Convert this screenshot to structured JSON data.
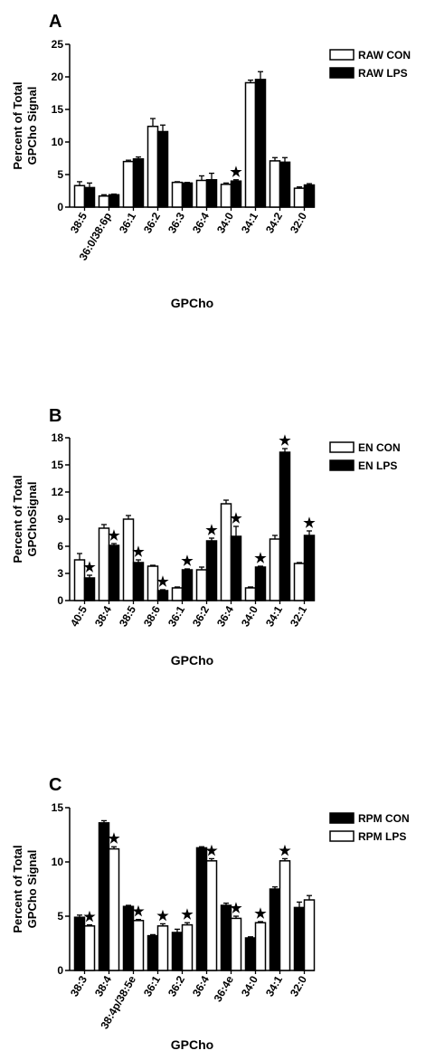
{
  "chart_data": [
    {
      "panel_letter": "A",
      "type": "bar",
      "ylabel": [
        "Percent of Total",
        "GPCho Signal"
      ],
      "xlabel": "GPCho",
      "ylim": [
        0,
        25
      ],
      "yticks": [
        0,
        5,
        10,
        15,
        20,
        25
      ],
      "categories": [
        "38:5",
        "36:0/38:6p",
        "36:1",
        "36:2",
        "36:3",
        "36:4",
        "34:0",
        "34:1",
        "34:2",
        "32:0"
      ],
      "series": [
        {
          "name": "RAW CON",
          "fill": "#ffffff",
          "values": [
            3.3,
            1.7,
            7.0,
            12.4,
            3.8,
            4.1,
            3.5,
            19.1,
            7.1,
            2.9
          ],
          "errors": [
            0.6,
            0.2,
            0.2,
            1.2,
            0.1,
            0.7,
            0.2,
            0.4,
            0.5,
            0.2
          ]
        },
        {
          "name": "RAW LPS",
          "fill": "#000000",
          "values": [
            3.0,
            1.9,
            7.4,
            11.6,
            3.7,
            4.2,
            4.0,
            19.6,
            6.9,
            3.4
          ],
          "errors": [
            0.7,
            0.1,
            0.3,
            1.0,
            0.1,
            1.0,
            0.2,
            1.2,
            0.7,
            0.2
          ]
        }
      ],
      "stars": [
        {
          "category_index": 6,
          "series_index": 1
        }
      ]
    },
    {
      "panel_letter": "B",
      "type": "bar",
      "ylabel": [
        "Percent of Total",
        "GPChoSignal"
      ],
      "xlabel": "GPCho",
      "ylim": [
        0,
        18
      ],
      "yticks": [
        0,
        3,
        6,
        9,
        12,
        15,
        18
      ],
      "categories": [
        "40:5",
        "38:4",
        "38:5",
        "38:6",
        "36:1",
        "36:2",
        "36:4",
        "34:0",
        "34:1",
        "32:1"
      ],
      "series": [
        {
          "name": "EN CON",
          "fill": "#ffffff",
          "values": [
            4.5,
            8.0,
            9.0,
            3.8,
            1.4,
            3.4,
            10.7,
            1.4,
            6.8,
            4.1
          ],
          "errors": [
            0.7,
            0.4,
            0.4,
            0.1,
            0.1,
            0.3,
            0.4,
            0.1,
            0.4,
            0.1
          ]
        },
        {
          "name": "EN LPS",
          "fill": "#000000",
          "values": [
            2.5,
            6.1,
            4.2,
            1.1,
            3.4,
            6.6,
            7.1,
            3.7,
            16.4,
            7.2
          ],
          "errors": [
            0.3,
            0.2,
            0.3,
            0.1,
            0.1,
            0.3,
            1.1,
            0.1,
            0.4,
            0.5
          ]
        }
      ],
      "stars": [
        {
          "category_index": 0,
          "series_index": 1
        },
        {
          "category_index": 1,
          "series_index": 1
        },
        {
          "category_index": 2,
          "series_index": 1
        },
        {
          "category_index": 3,
          "series_index": 1
        },
        {
          "category_index": 4,
          "series_index": 1
        },
        {
          "category_index": 5,
          "series_index": 1
        },
        {
          "category_index": 6,
          "series_index": 1
        },
        {
          "category_index": 7,
          "series_index": 1
        },
        {
          "category_index": 8,
          "series_index": 1
        },
        {
          "category_index": 9,
          "series_index": 1
        }
      ]
    },
    {
      "panel_letter": "C",
      "type": "bar",
      "ylabel": [
        "Percent of Total",
        "GPCho Signal"
      ],
      "xlabel": "GPCho",
      "ylim": [
        0,
        15
      ],
      "yticks": [
        0,
        5,
        10,
        15
      ],
      "categories": [
        "38:3",
        "38:4",
        "38:4p/38:5e",
        "36:1",
        "36:2",
        "36:4",
        "36:4e",
        "34:0",
        "34:1",
        "32:0"
      ],
      "series": [
        {
          "name": "RPM CON",
          "fill": "#000000",
          "values": [
            4.9,
            13.6,
            5.9,
            3.2,
            3.5,
            11.3,
            6.0,
            3.0,
            7.5,
            5.8
          ],
          "errors": [
            0.2,
            0.2,
            0.1,
            0.1,
            0.3,
            0.1,
            0.2,
            0.1,
            0.2,
            0.5
          ]
        },
        {
          "name": "RPM LPS",
          "fill": "#ffffff",
          "values": [
            4.1,
            11.2,
            4.6,
            4.1,
            4.2,
            10.1,
            4.8,
            4.4,
            10.1,
            6.5
          ],
          "errors": [
            0.1,
            0.2,
            0.1,
            0.2,
            0.2,
            0.2,
            0.2,
            0.1,
            0.2,
            0.4
          ]
        }
      ],
      "stars": [
        {
          "category_index": 0,
          "series_index": 1
        },
        {
          "category_index": 1,
          "series_index": 1
        },
        {
          "category_index": 2,
          "series_index": 1
        },
        {
          "category_index": 3,
          "series_index": 1
        },
        {
          "category_index": 4,
          "series_index": 1
        },
        {
          "category_index": 5,
          "series_index": 1
        },
        {
          "category_index": 6,
          "series_index": 1
        },
        {
          "category_index": 7,
          "series_index": 1
        },
        {
          "category_index": 8,
          "series_index": 1
        }
      ]
    }
  ]
}
